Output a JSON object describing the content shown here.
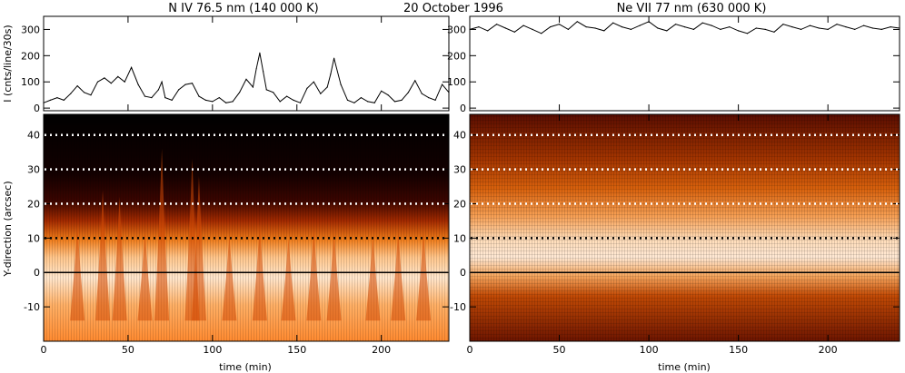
{
  "header": {
    "date": "20 October 1996",
    "left_title": "N IV 76.5 nm (140 000 K)",
    "right_title": "Ne VII 77 nm (630 000 K)"
  },
  "axes": {
    "lightcurve_ylabel": "I (cnts/line/30s)",
    "map_ylabel": "Y-direction (arcsec)",
    "xlabel": "time (min)"
  },
  "chart_data": [
    {
      "type": "line",
      "panel": "N IV light curve",
      "xlim": [
        0,
        240
      ],
      "ylim": [
        -10,
        350
      ],
      "xticks": [
        0,
        50,
        100,
        150,
        200
      ],
      "yticks": [
        0,
        100,
        200,
        300
      ],
      "series": [
        {
          "x": [
            0,
            4,
            8,
            12,
            16,
            20,
            24,
            28,
            32,
            36,
            40,
            44,
            48,
            52,
            56,
            60,
            64,
            68,
            70,
            72,
            76,
            80,
            84,
            88,
            92,
            96,
            100,
            104,
            108,
            112,
            116,
            120,
            124,
            126,
            128,
            130,
            132,
            136,
            140,
            144,
            148,
            152,
            156,
            160,
            164,
            168,
            170,
            172,
            176,
            180,
            184,
            188,
            192,
            196,
            200,
            204,
            208,
            212,
            216,
            220,
            224,
            228,
            232,
            236,
            240
          ],
          "y": [
            20,
            30,
            40,
            30,
            55,
            85,
            60,
            50,
            100,
            115,
            95,
            120,
            100,
            155,
            90,
            45,
            40,
            70,
            100,
            40,
            30,
            70,
            90,
            95,
            45,
            30,
            25,
            40,
            20,
            25,
            60,
            110,
            80,
            150,
            210,
            140,
            70,
            60,
            25,
            45,
            30,
            20,
            75,
            100,
            55,
            80,
            130,
            190,
            90,
            30,
            20,
            40,
            25,
            20,
            65,
            50,
            25,
            30,
            60,
            105,
            55,
            40,
            30,
            90,
            60
          ]
        }
      ]
    },
    {
      "type": "line",
      "panel": "Ne VII light curve",
      "xlim": [
        0,
        240
      ],
      "ylim": [
        -10,
        350
      ],
      "xticks": [
        0,
        50,
        100,
        150,
        200
      ],
      "yticks": [
        0,
        100,
        200,
        300
      ],
      "series": [
        {
          "x": [
            0,
            5,
            10,
            15,
            20,
            25,
            30,
            35,
            40,
            45,
            50,
            55,
            60,
            65,
            70,
            75,
            80,
            85,
            90,
            95,
            100,
            105,
            110,
            115,
            120,
            125,
            130,
            135,
            140,
            145,
            150,
            155,
            160,
            165,
            170,
            175,
            180,
            185,
            190,
            195,
            200,
            205,
            210,
            215,
            220,
            225,
            230,
            235,
            240
          ],
          "y": [
            300,
            310,
            295,
            320,
            305,
            290,
            315,
            300,
            285,
            310,
            320,
            300,
            330,
            310,
            305,
            295,
            325,
            310,
            300,
            315,
            330,
            305,
            295,
            320,
            310,
            300,
            325,
            315,
            300,
            310,
            295,
            285,
            305,
            300,
            290,
            320,
            310,
            300,
            315,
            305,
            300,
            320,
            310,
            300,
            315,
            305,
            300,
            310,
            305
          ]
        }
      ]
    },
    {
      "type": "heatmap",
      "panel": "N IV time-slice map",
      "xlim": [
        0,
        240
      ],
      "ylim": [
        -20,
        46
      ],
      "xticks": [
        0,
        50,
        100,
        150,
        200
      ],
      "yticks": [
        -10,
        0,
        10,
        20,
        30,
        40
      ],
      "reference_lines": [
        {
          "y": 0,
          "style": "solid",
          "color": "#000000"
        },
        {
          "y": 10,
          "style": "dotted",
          "color": "#000000"
        },
        {
          "y": 20,
          "style": "dotted",
          "color": "#ffffff"
        },
        {
          "y": 30,
          "style": "dotted",
          "color": "#ffffff"
        },
        {
          "y": 40,
          "style": "dotted",
          "color": "#ffffff"
        }
      ],
      "colormap": "red-temperature"
    },
    {
      "type": "heatmap",
      "panel": "Ne VII time-slice map",
      "xlim": [
        0,
        240
      ],
      "ylim": [
        -20,
        46
      ],
      "xticks": [
        0,
        50,
        100,
        150,
        200
      ],
      "yticks": [
        -10,
        0,
        10,
        20,
        30,
        40
      ],
      "reference_lines": [
        {
          "y": 0,
          "style": "solid",
          "color": "#000000"
        },
        {
          "y": 10,
          "style": "dotted",
          "color": "#000000"
        },
        {
          "y": 20,
          "style": "dotted",
          "color": "#ffffff"
        },
        {
          "y": 30,
          "style": "dotted",
          "color": "#ffffff"
        },
        {
          "y": 40,
          "style": "dotted",
          "color": "#ffffff"
        }
      ],
      "colormap": "red-temperature"
    }
  ]
}
